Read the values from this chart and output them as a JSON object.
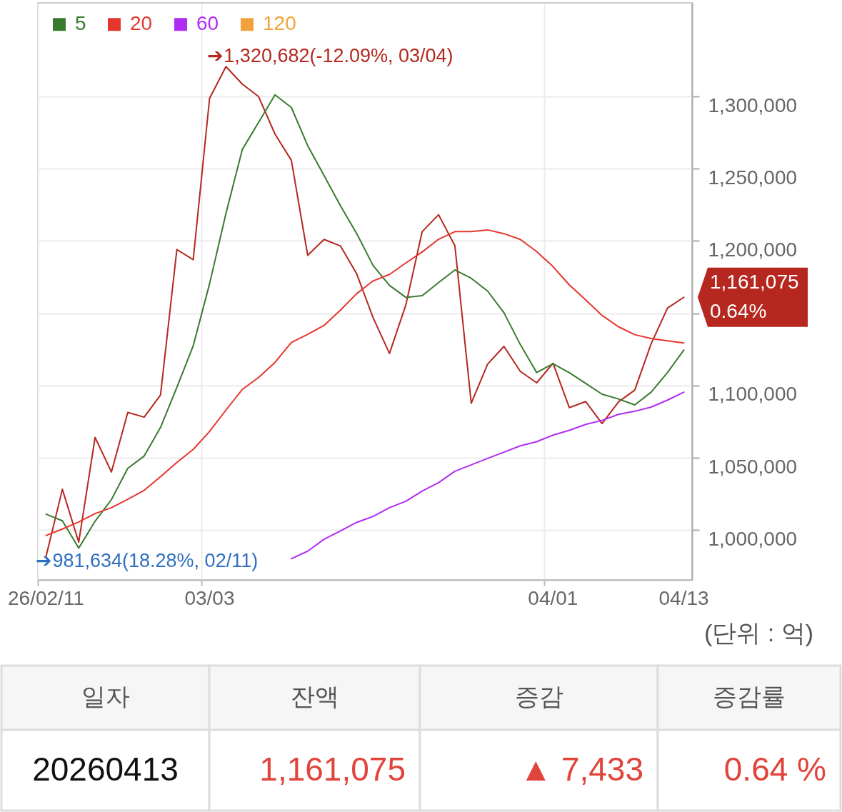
{
  "chart_data": [
    {
      "type": "line",
      "categories": [
        "26/02/11",
        null,
        null,
        null,
        null,
        null,
        null,
        null,
        null,
        null,
        "03/03",
        null,
        null,
        null,
        null,
        null,
        null,
        null,
        null,
        null,
        null,
        null,
        null,
        null,
        null,
        null,
        null,
        null,
        null,
        null,
        null,
        "04/01",
        null,
        null,
        null,
        null,
        null,
        null,
        null,
        "04/13"
      ],
      "series": [
        {
          "color": "#b5271f",
          "values": [
            981634,
            1028200,
            991600,
            1064100,
            1040200,
            1081400,
            1078100,
            1093400,
            1194100,
            1187100,
            1298700,
            1320682,
            1308600,
            1299900,
            1274000,
            1255900,
            1190100,
            1201100,
            1196600,
            1177200,
            1146900,
            1122200,
            1155700,
            1206500,
            1218200,
            1196800,
            1087700,
            1114800,
            1127100,
            1109800,
            1101900,
            1115400,
            1084700,
            1088900,
            1073700,
            1088600,
            1096900,
            1128900,
            1153600,
            1161075
          ]
        },
        {
          "name": "5",
          "color": "#387b2e",
          "values": [
            1011000,
            1006400,
            987500,
            1006100,
            1021100,
            1042700,
            1051200,
            1071000,
            1098700,
            1127500,
            1170400,
            1219000,
            1263300,
            1282100,
            1301200,
            1292400,
            1266000,
            1245300,
            1224500,
            1205100,
            1183000,
            1169300,
            1161000,
            1162200,
            1171200,
            1180000,
            1174200,
            1165400,
            1150400,
            1128400,
            1109000,
            1115100,
            1108900,
            1101500,
            1094000,
            1090700,
            1086600,
            1095400,
            1109000,
            1124600
          ]
        },
        {
          "name": "20",
          "color": "#e5362d",
          "values": [
            996200,
            1000700,
            1005600,
            1011400,
            1015500,
            1021300,
            1027500,
            1036900,
            1046800,
            1055800,
            1068200,
            1083000,
            1097300,
            1105600,
            1116000,
            1129800,
            1135400,
            1141600,
            1152200,
            1163600,
            1172400,
            1176900,
            1184800,
            1192400,
            1201200,
            1206500,
            1206500,
            1207700,
            1205100,
            1201100,
            1192700,
            1182300,
            1169600,
            1159200,
            1148500,
            1140700,
            1135200,
            1132500,
            1130900,
            1129500
          ]
        },
        {
          "name": "60",
          "color": "#b12cf2",
          "values": [
            null,
            null,
            null,
            null,
            null,
            null,
            null,
            null,
            null,
            null,
            null,
            null,
            null,
            null,
            null,
            980100,
            985400,
            993600,
            999400,
            1005300,
            1009400,
            1015500,
            1019900,
            1027000,
            1032800,
            1040700,
            1045100,
            1049600,
            1053900,
            1058300,
            1061100,
            1065700,
            1069000,
            1073100,
            1075900,
            1080000,
            1082200,
            1085100,
            1089900,
            1095400
          ]
        },
        {
          "name": "120",
          "color": "#f2a23a",
          "values": [
            null,
            null,
            null,
            null,
            null,
            null,
            null,
            null,
            null,
            null,
            null,
            null,
            null,
            null,
            null,
            null,
            null,
            null,
            null,
            null,
            null,
            null,
            null,
            null,
            null,
            null,
            null,
            null,
            null,
            null,
            null,
            null,
            null,
            null,
            null,
            null,
            null,
            null,
            null,
            null
          ]
        }
      ],
      "ylim": [
        965500,
        1364800
      ],
      "yticks": [
        {
          "value": 1000000,
          "label": "1,000,000"
        },
        {
          "value": 1050000,
          "label": "1,050,000"
        },
        {
          "value": 1100000,
          "label": "1,100,000"
        },
        {
          "value": 1150000,
          "label": null
        },
        {
          "value": 1200000,
          "label": "1,200,000"
        },
        {
          "value": 1250000,
          "label": "1,250,000"
        },
        {
          "value": 1300000,
          "label": "1,300,000"
        }
      ],
      "grid": true,
      "legend": "top left",
      "annotations": [
        "➔1,320,682(-12.09%, 03/04)",
        {
          "text": "➔981,634(18.28%, 02/11)",
          "x": "26/02/11",
          "y": 981634
        },
        {
          "text": "1,161,075",
          "x": "04/13",
          "y": 1161075
        },
        {
          "text": "0.64%",
          "x": "04/13",
          "y": 1161075
        },
        "(단위 : 억)"
      ]
    },
    {
      "type": "other",
      "categories": [
        "일자",
        "잔액",
        "증감",
        "증감률"
      ],
      "value_labels": [
        "20260413",
        "1,161,075",
        "▲ 7,433",
        "0.64 %"
      ]
    }
  ]
}
